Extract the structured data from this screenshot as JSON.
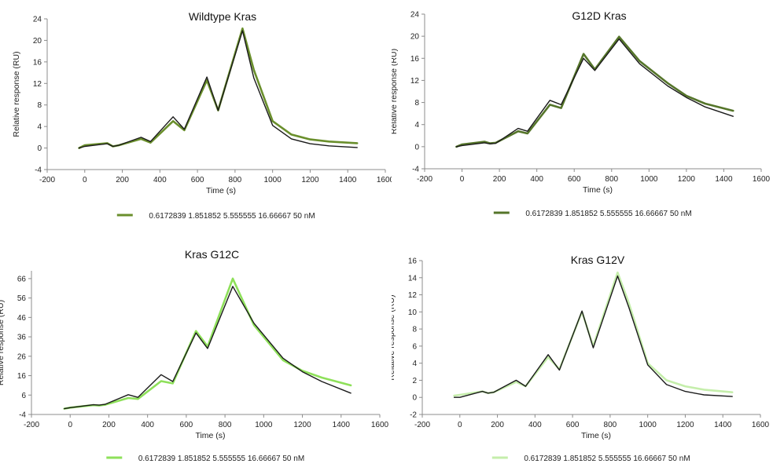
{
  "palette": {
    "axis": "#8c8c8c",
    "fit": "#1a1a1a",
    "wildtype": "#6a8f2c",
    "g12d": "#55752a",
    "g12c": "#8ee05a",
    "g12v": "#c5eeab"
  },
  "chart_data": [
    {
      "type": "line",
      "title": "Wildtype Kras",
      "xlabel": "Time (s)",
      "ylabel": "Relative response (RU)",
      "xlim": [
        -200,
        1600
      ],
      "ylim": [
        -4,
        24
      ],
      "xticks": [
        "-200",
        "0",
        "200",
        "400",
        "600",
        "800",
        "1000",
        "1200",
        "1400",
        "1600"
      ],
      "yticks": [
        "-4",
        "0",
        "4",
        "8",
        "12",
        "16",
        "20",
        "24"
      ],
      "legend": "0.6172839  1.851852  5.555555  16.66667  50 nM",
      "color_key": "wildtype",
      "series": [
        {
          "role": "data",
          "points": [
            [
              -30,
              0
            ],
            [
              0,
              0.5
            ],
            [
              120,
              0.9
            ],
            [
              150,
              0.3
            ],
            [
              180,
              0.5
            ],
            [
              300,
              1.7
            ],
            [
              350,
              1.0
            ],
            [
              470,
              5.0
            ],
            [
              530,
              3.3
            ],
            [
              650,
              12.6
            ],
            [
              710,
              7.0
            ],
            [
              840,
              22.2
            ],
            [
              900,
              14.5
            ],
            [
              1000,
              5.0
            ],
            [
              1100,
              2.5
            ],
            [
              1200,
              1.6
            ],
            [
              1300,
              1.2
            ],
            [
              1450,
              0.9
            ]
          ]
        },
        {
          "role": "fit",
          "points": [
            [
              -30,
              0
            ],
            [
              0,
              0.3
            ],
            [
              120,
              0.8
            ],
            [
              150,
              0.3
            ],
            [
              180,
              0.5
            ],
            [
              300,
              2.0
            ],
            [
              350,
              1.2
            ],
            [
              470,
              5.8
            ],
            [
              530,
              3.5
            ],
            [
              650,
              13.2
            ],
            [
              710,
              7.0
            ],
            [
              840,
              21.8
            ],
            [
              900,
              13.0
            ],
            [
              1000,
              4.2
            ],
            [
              1100,
              1.7
            ],
            [
              1200,
              0.8
            ],
            [
              1300,
              0.4
            ],
            [
              1450,
              0.1
            ]
          ]
        }
      ]
    },
    {
      "type": "line",
      "title": "G12D Kras",
      "xlabel": "Time (s)",
      "ylabel": "Relative response (RU)",
      "xlim": [
        -200,
        1600
      ],
      "ylim": [
        -4,
        24
      ],
      "xticks": [
        "-200",
        "0",
        "200",
        "400",
        "600",
        "800",
        "1000",
        "1200",
        "1400",
        "1600"
      ],
      "yticks": [
        "-4",
        "0",
        "4",
        "8",
        "12",
        "16",
        "20",
        "24"
      ],
      "legend": "0.6172839  1.851852  5.555555  16.66667  50 nM",
      "color_key": "g12d",
      "series": [
        {
          "role": "data",
          "points": [
            [
              -30,
              0
            ],
            [
              0,
              0.4
            ],
            [
              120,
              0.9
            ],
            [
              150,
              0.6
            ],
            [
              180,
              0.7
            ],
            [
              300,
              2.8
            ],
            [
              350,
              2.4
            ],
            [
              470,
              7.6
            ],
            [
              530,
              7.0
            ],
            [
              650,
              16.8
            ],
            [
              710,
              14.0
            ],
            [
              840,
              19.9
            ],
            [
              950,
              15.5
            ],
            [
              1100,
              11.5
            ],
            [
              1200,
              9.2
            ],
            [
              1300,
              7.8
            ],
            [
              1450,
              6.5
            ]
          ]
        },
        {
          "role": "fit",
          "points": [
            [
              -30,
              0
            ],
            [
              0,
              0.2
            ],
            [
              120,
              0.7
            ],
            [
              150,
              0.5
            ],
            [
              180,
              0.6
            ],
            [
              300,
              3.3
            ],
            [
              350,
              2.8
            ],
            [
              470,
              8.4
            ],
            [
              530,
              7.6
            ],
            [
              650,
              16.0
            ],
            [
              710,
              13.8
            ],
            [
              840,
              19.5
            ],
            [
              950,
              15.0
            ],
            [
              1100,
              11.0
            ],
            [
              1200,
              8.9
            ],
            [
              1300,
              7.2
            ],
            [
              1450,
              5.5
            ]
          ]
        }
      ]
    },
    {
      "type": "line",
      "title": "Kras G12C",
      "xlabel": "Time (s)",
      "ylabel": "Relative response (RU)",
      "xlim": [
        -200,
        1600
      ],
      "ylim": [
        -4,
        70
      ],
      "xticks": [
        "-200",
        "0",
        "200",
        "400",
        "600",
        "800",
        "1000",
        "1200",
        "1400",
        "1600"
      ],
      "yticks": [
        "-4",
        "6",
        "16",
        "26",
        "36",
        "46",
        "56",
        "66"
      ],
      "legend": "0.6172839  1.851852  5.555555  16.66667  50 nM",
      "color_key": "g12c",
      "series": [
        {
          "role": "data",
          "points": [
            [
              -30,
              -1
            ],
            [
              0,
              -0.5
            ],
            [
              120,
              0.8
            ],
            [
              150,
              0.6
            ],
            [
              180,
              1.0
            ],
            [
              300,
              4.5
            ],
            [
              350,
              4.0
            ],
            [
              470,
              13.2
            ],
            [
              530,
              12.0
            ],
            [
              650,
              39.0
            ],
            [
              710,
              31.0
            ],
            [
              840,
              66.0
            ],
            [
              950,
              42.0
            ],
            [
              1100,
              24.0
            ],
            [
              1200,
              18.5
            ],
            [
              1300,
              15.0
            ],
            [
              1450,
              11.0
            ]
          ]
        },
        {
          "role": "fit",
          "points": [
            [
              -30,
              -1
            ],
            [
              0,
              -0.5
            ],
            [
              120,
              1.0
            ],
            [
              150,
              0.8
            ],
            [
              180,
              1.2
            ],
            [
              300,
              6.2
            ],
            [
              350,
              4.8
            ],
            [
              470,
              16.5
            ],
            [
              530,
              13.0
            ],
            [
              650,
              38.0
            ],
            [
              710,
              30.0
            ],
            [
              840,
              62.0
            ],
            [
              950,
              43.0
            ],
            [
              1100,
              25.0
            ],
            [
              1200,
              18.0
            ],
            [
              1300,
              13.0
            ],
            [
              1450,
              7.0
            ]
          ]
        }
      ]
    },
    {
      "type": "line",
      "title": "Kras G12V",
      "xlabel": "Time (s)",
      "ylabel": "Relative response (RU)",
      "xlim": [
        -200,
        1600
      ],
      "ylim": [
        -2,
        16
      ],
      "xticks": [
        "-200",
        "0",
        "200",
        "400",
        "600",
        "800",
        "1000",
        "1200",
        "1400",
        "1600"
      ],
      "yticks": [
        "-2",
        "0",
        "2",
        "4",
        "6",
        "8",
        "10",
        "12",
        "14",
        "16"
      ],
      "legend": "0.6172839  1.851852  5.555555  16.66667  50 nM",
      "color_key": "g12v",
      "series": [
        {
          "role": "data",
          "points": [
            [
              -30,
              0.2
            ],
            [
              0,
              0.3
            ],
            [
              120,
              0.7
            ],
            [
              150,
              0.5
            ],
            [
              180,
              0.6
            ],
            [
              300,
              1.8
            ],
            [
              350,
              1.3
            ],
            [
              470,
              4.7
            ],
            [
              530,
              3.3
            ],
            [
              650,
              10.0
            ],
            [
              710,
              6.0
            ],
            [
              840,
              14.6
            ],
            [
              900,
              11.0
            ],
            [
              1000,
              4.0
            ],
            [
              1100,
              2.0
            ],
            [
              1200,
              1.3
            ],
            [
              1300,
              0.9
            ],
            [
              1450,
              0.6
            ]
          ]
        },
        {
          "role": "fit",
          "points": [
            [
              -30,
              0
            ],
            [
              0,
              0
            ],
            [
              120,
              0.7
            ],
            [
              150,
              0.5
            ],
            [
              180,
              0.6
            ],
            [
              300,
              2.0
            ],
            [
              350,
              1.3
            ],
            [
              470,
              5.0
            ],
            [
              530,
              3.2
            ],
            [
              650,
              10.1
            ],
            [
              710,
              5.8
            ],
            [
              840,
              14.2
            ],
            [
              900,
              10.5
            ],
            [
              1000,
              3.8
            ],
            [
              1100,
              1.5
            ],
            [
              1200,
              0.7
            ],
            [
              1300,
              0.3
            ],
            [
              1450,
              0.1
            ]
          ]
        }
      ]
    }
  ]
}
